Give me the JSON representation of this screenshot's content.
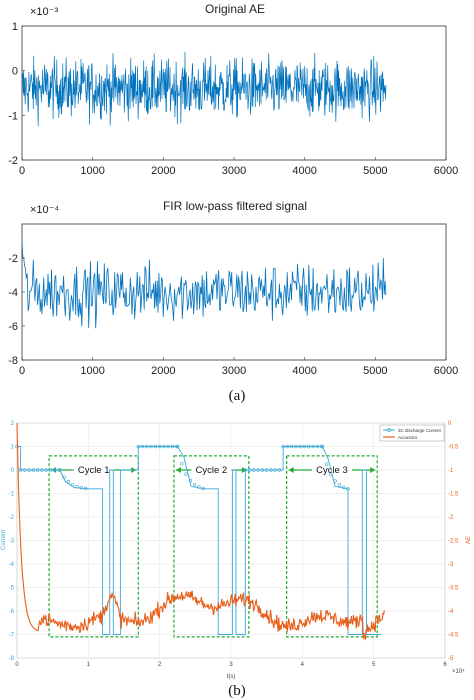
{
  "chart_data": [
    {
      "type": "line",
      "title": "Original AE",
      "exponent_label": "×10⁻³",
      "xlim": [
        0,
        6000
      ],
      "ylim": [
        -2,
        1
      ],
      "xticks": [
        "0",
        "1000",
        "2000",
        "3000",
        "4000",
        "5000",
        "6000"
      ],
      "yticks": [
        "1",
        "0",
        "-1",
        "-2"
      ],
      "color": "#0072BD",
      "series": [
        {
          "x_range": [
            0,
            5150
          ],
          "mean": -0.4,
          "min": -1.5,
          "max": 0.8
        }
      ]
    },
    {
      "type": "line",
      "title": "FIR low-pass filtered signal",
      "exponent_label": "×10⁻⁴",
      "xlim": [
        0,
        6000
      ],
      "ylim": [
        -8,
        0
      ],
      "xticks": [
        "0",
        "1000",
        "2000",
        "3000",
        "4000",
        "5000",
        "6000"
      ],
      "yticks": [
        "-2",
        "-4",
        "-6",
        "-8"
      ],
      "color": "#0072BD",
      "series": [
        {
          "x_range": [
            0,
            5150
          ],
          "start": -1.0,
          "mean": -4.0,
          "min": -7.2,
          "max": -2.0
        }
      ]
    },
    {
      "type": "line",
      "xlabel": "t(s)",
      "x_exponent_label": "×10⁴",
      "ylabel_left": "Current",
      "ylabel_right": "AE",
      "xlim": [
        0,
        6
      ],
      "ylim_left": [
        -8,
        2
      ],
      "ylim_right": [
        -5,
        0
      ],
      "xticks": [
        "0",
        "1",
        "2",
        "3",
        "4",
        "5",
        "6"
      ],
      "yticks_left": [
        "2",
        "1",
        "0",
        "-1",
        "-2",
        "-3",
        "-4",
        "-5",
        "-6",
        "-7",
        "-8"
      ],
      "yticks_right": [
        "0",
        "-0.5",
        "-1",
        "-1.5",
        "-2",
        "-2.5",
        "-3",
        "-3.5",
        "-4",
        "-4.5",
        "-5"
      ],
      "grid": true,
      "legend_position": "top-right",
      "series": [
        {
          "name": "3C discharge Current",
          "color": "#3FA9D8",
          "marker": "circle",
          "x": [
            0,
            0.05,
            0.05,
            0.6,
            0.68,
            0.8,
            1.0,
            1.2,
            1.2,
            1.3,
            1.3,
            1.35,
            1.35,
            1.45,
            1.45,
            1.7,
            1.7,
            2.25,
            2.34,
            2.44,
            2.62,
            2.82,
            2.82,
            3.02,
            3.02,
            3.07,
            3.07,
            3.2,
            3.2,
            3.73,
            3.73,
            4.28,
            4.36,
            4.46,
            4.64,
            4.64,
            4.84,
            4.84,
            4.9,
            4.9,
            5.1
          ],
          "y": [
            1,
            1,
            0,
            0,
            -0.5,
            -0.75,
            -0.8,
            -0.8,
            -7,
            -7,
            0,
            0,
            -7,
            -7,
            0,
            0,
            1,
            1,
            0.55,
            -0.7,
            -0.8,
            -0.8,
            -7,
            -7,
            0,
            0,
            -7,
            -7,
            0,
            0,
            1,
            1,
            0.5,
            -0.7,
            -0.8,
            -7,
            -7,
            0,
            0,
            -7,
            -7
          ]
        },
        {
          "name": "Acoustics",
          "color": "#E8601C",
          "axis": "right",
          "mean": -4.0,
          "min": -4.6,
          "max": 0
        }
      ],
      "cycles": [
        {
          "label": "Cycle 1",
          "x_range": [
            0.45,
            1.7
          ]
        },
        {
          "label": "Cycle 2",
          "x_range": [
            2.2,
            3.25
          ]
        },
        {
          "label": "Cycle 3",
          "x_range": [
            3.78,
            5.05
          ]
        }
      ]
    }
  ],
  "captions": [
    "(a)",
    "(b)"
  ]
}
